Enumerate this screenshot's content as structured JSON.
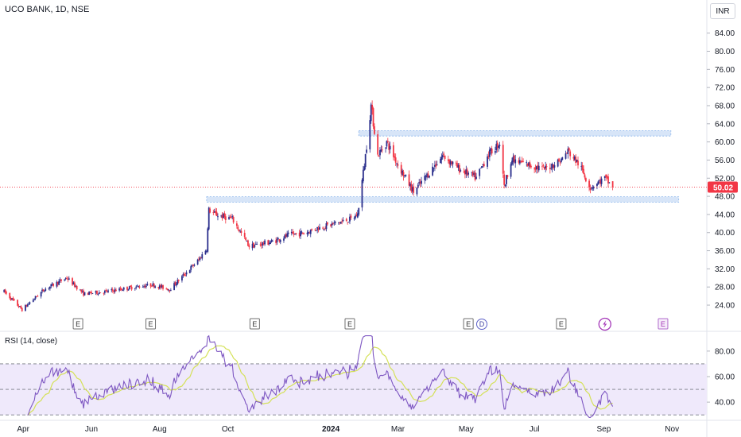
{
  "header": {
    "title": "UCO BANK, 1D, NSE",
    "currency": "INR"
  },
  "rsi_panel": {
    "title": "RSI (14, close)"
  },
  "markers": {
    "earnings_label": "E",
    "dividend_label": "D",
    "items": [
      {
        "type": "earnings",
        "date": "2023-05-20"
      },
      {
        "type": "earnings",
        "date": "2023-07-24"
      },
      {
        "type": "earnings",
        "date": "2023-10-25"
      },
      {
        "type": "earnings",
        "date": "2024-01-18"
      },
      {
        "type": "earnings",
        "date": "2024-05-03"
      },
      {
        "type": "dividend",
        "date": "2024-05-15"
      },
      {
        "type": "earnings",
        "date": "2024-07-25"
      },
      {
        "type": "flash",
        "date": "2024-09-02"
      },
      {
        "type": "earnings",
        "date": "2024-10-24"
      }
    ]
  },
  "colors": {
    "up": "#2a2e8c",
    "down": "#f23645",
    "zone": "#c9dcf5",
    "zone_border": "#8bb5ec",
    "rsi_line": "#7e57c2",
    "rsi_ma": "#d4e157",
    "rsi_band": "#efe9fb",
    "earnings": "#707070",
    "flash": "#a437b8",
    "price_label_bg": "#f23645"
  },
  "chart_data": [
    {
      "type": "candlestick",
      "title": "UCO BANK, 1D, NSE",
      "currency": "INR",
      "x_ticks": [
        "Apr",
        "Jun",
        "Aug",
        "Oct",
        "2024",
        "Mar",
        "May",
        "Jul",
        "Sep",
        "Nov"
      ],
      "y_ticks": [
        24,
        28,
        32,
        36,
        40,
        44,
        48,
        52,
        56,
        60,
        64,
        68,
        72,
        76,
        80,
        84
      ],
      "ylim": [
        20.5,
        88.5
      ],
      "last_price": 50.02,
      "last_price_label": "50.02",
      "zones": [
        {
          "low": 61.3,
          "high": 62.5,
          "from": "2024-01-26",
          "to": "2024-10-31"
        },
        {
          "low": 46.7,
          "high": 47.9,
          "from": "2023-09-12",
          "to": "2024-11-07"
        }
      ],
      "keypoints": [
        [
          "2023-03-15",
          27
        ],
        [
          "2023-03-31",
          23
        ],
        [
          "2023-04-20",
          27.5
        ],
        [
          "2023-05-10",
          30
        ],
        [
          "2023-05-25",
          26.5
        ],
        [
          "2023-06-15",
          27
        ],
        [
          "2023-07-10",
          28
        ],
        [
          "2023-07-25",
          28.5
        ],
        [
          "2023-08-10",
          27.5
        ],
        [
          "2023-08-20",
          30
        ],
        [
          "2023-09-05",
          34
        ],
        [
          "2023-09-12",
          36.5
        ],
        [
          "2023-09-14",
          45
        ],
        [
          "2023-09-20",
          44
        ],
        [
          "2023-10-05",
          43
        ],
        [
          "2023-10-20",
          37
        ],
        [
          "2023-11-10",
          38
        ],
        [
          "2023-11-25",
          39.5
        ],
        [
          "2023-12-10",
          40
        ],
        [
          "2023-12-20",
          41
        ],
        [
          "2024-01-05",
          42
        ],
        [
          "2024-01-20",
          43
        ],
        [
          "2024-01-25",
          44
        ],
        [
          "2024-02-01",
          57
        ],
        [
          "2024-02-06",
          68
        ],
        [
          "2024-02-12",
          57
        ],
        [
          "2024-02-20",
          60
        ],
        [
          "2024-03-01",
          55
        ],
        [
          "2024-03-15",
          49
        ],
        [
          "2024-03-25",
          52
        ],
        [
          "2024-04-10",
          57
        ],
        [
          "2024-04-25",
          54
        ],
        [
          "2024-05-10",
          52
        ],
        [
          "2024-05-20",
          57
        ],
        [
          "2024-06-01",
          60
        ],
        [
          "2024-06-04",
          50
        ],
        [
          "2024-06-10",
          56
        ],
        [
          "2024-06-25",
          55
        ],
        [
          "2024-07-10",
          54
        ],
        [
          "2024-07-25",
          56
        ],
        [
          "2024-07-31",
          58
        ],
        [
          "2024-08-10",
          55
        ],
        [
          "2024-08-20",
          50
        ],
        [
          "2024-09-02",
          52
        ],
        [
          "2024-09-09",
          50
        ]
      ]
    },
    {
      "type": "line",
      "title": "RSI (14, close)",
      "y_ticks": [
        40,
        60,
        80
      ],
      "ylim": [
        27,
        93
      ],
      "bands": [
        30,
        50,
        70
      ],
      "series": [
        {
          "values": "computed (14, close)"
        },
        {
          "values": "moving average of RSI"
        }
      ]
    }
  ]
}
